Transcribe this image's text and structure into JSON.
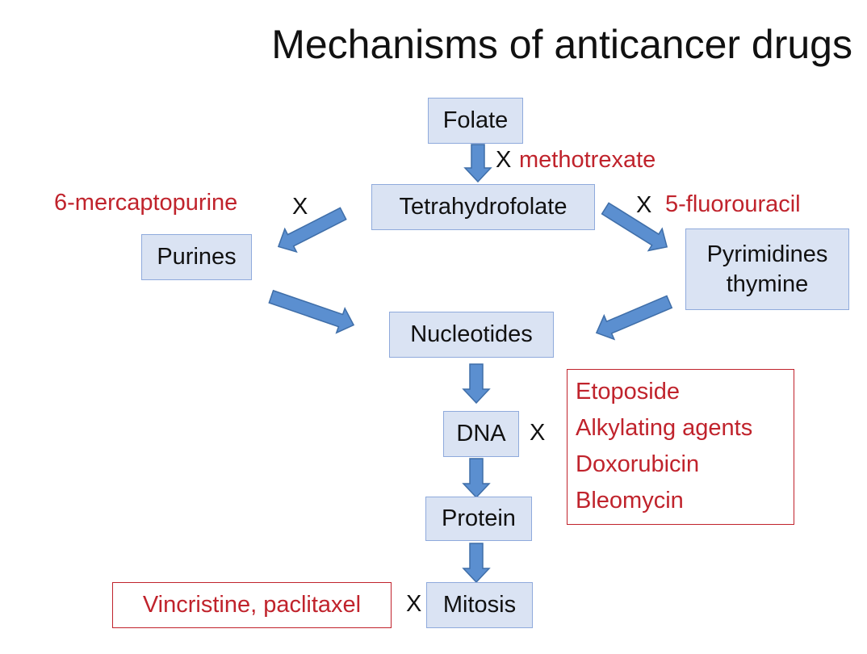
{
  "title": "Mechanisms of anticancer drugs",
  "nodes": {
    "folate": "Folate",
    "tetrahydrofolate": "Tetrahydrofolate",
    "purines": "Purines",
    "pyrimidines_line1": "Pyrimidines",
    "pyrimidines_line2": "thymine",
    "nucleotides": "Nucleotides",
    "dna": "DNA",
    "protein": "Protein",
    "mitosis": "Mitosis"
  },
  "inhibitors": {
    "methotrexate": "methotrexate",
    "mercaptopurine": "6-mercaptopurine",
    "fluorouracil": "5-fluorouracil",
    "dna_drugs": [
      "Etoposide",
      "Alkylating agents",
      "Doxorubicin",
      "Bleomycin"
    ],
    "mitosis_drugs": "Vincristine, paclitaxel"
  },
  "block_mark": "X",
  "colors": {
    "node_fill": "#dae3f3",
    "node_border": "#8faadc",
    "drug_text": "#c0232c",
    "arrow_fill": "#5b8fd0"
  }
}
